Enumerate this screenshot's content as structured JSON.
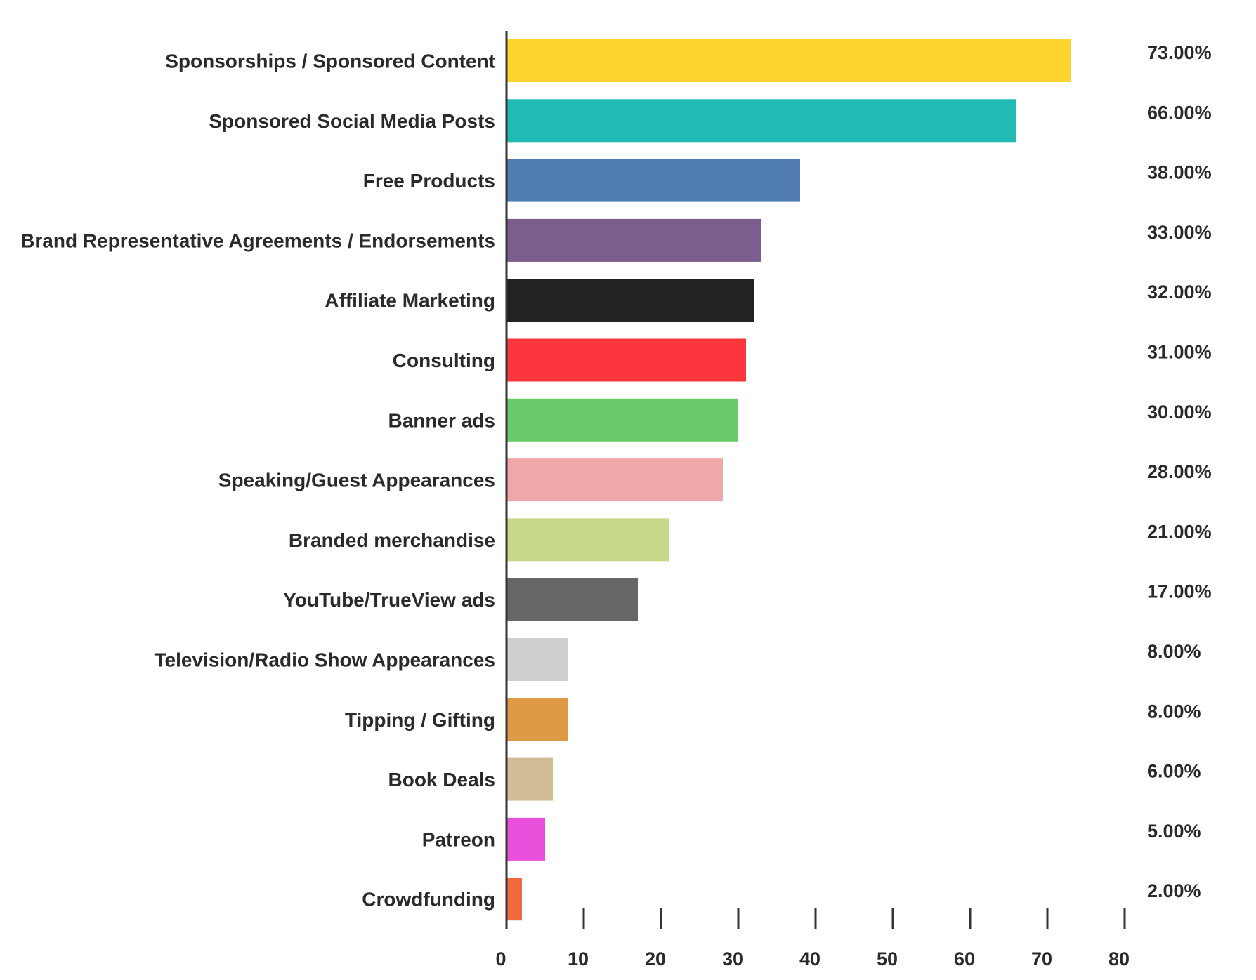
{
  "chart_data": {
    "type": "bar",
    "orientation": "horizontal",
    "categories": [
      "Sponsorships / Sponsored Content",
      "Sponsored Social Media Posts",
      "Free Products",
      "Brand Representative Agreements / Endorsements",
      "Affiliate Marketing",
      "Consulting",
      "Banner ads",
      "Speaking/Guest Appearances",
      "Branded merchandise",
      "YouTube/TrueView ads",
      "Television/Radio Show Appearances",
      "Tipping / Gifting",
      "Book Deals",
      "Patreon",
      "Crowdfunding"
    ],
    "values": [
      73,
      66,
      38,
      33,
      32,
      31,
      30,
      28,
      21,
      17,
      8,
      8,
      6,
      5,
      2
    ],
    "value_labels": [
      "73.00%",
      "66.00%",
      "38.00%",
      "33.00%",
      "32.00%",
      "31.00%",
      "30.00%",
      "28.00%",
      "21.00%",
      "17.00%",
      "8.00%",
      "8.00%",
      "6.00%",
      "5.00%",
      "2.00%"
    ],
    "colors": [
      "#fdd32e",
      "#21bbb4",
      "#517db3",
      "#7b5e8d",
      "#222222",
      "#fc363c",
      "#6acb6b",
      "#f0a7aa",
      "#c6d98a",
      "#666666",
      "#cfcfcd",
      "#dd9944",
      "#d0bd96",
      "#e84fdb",
      "#ef6a3e"
    ],
    "xlim": [
      0,
      80
    ],
    "x_ticks": [
      0,
      10,
      20,
      30,
      40,
      50,
      60,
      70,
      80
    ],
    "title": "",
    "xlabel": "",
    "ylabel": "",
    "grid": false,
    "legend": "none"
  }
}
